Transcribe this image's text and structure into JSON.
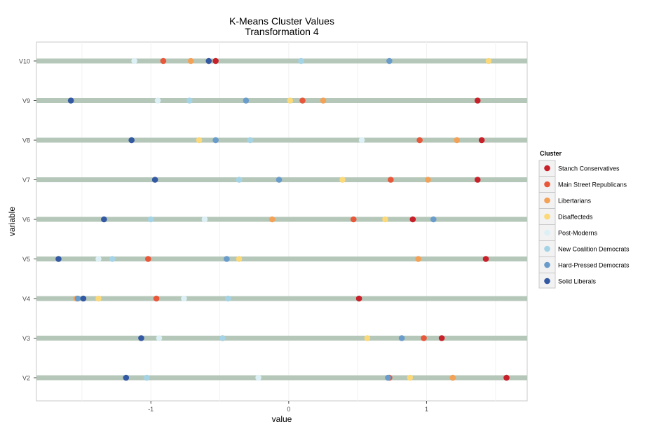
{
  "chart_data": {
    "type": "scatter",
    "title": "K-Means Cluster Values",
    "subtitle": "Transformation 4",
    "xlabel": "value",
    "ylabel": "variable",
    "xlim": [
      -1.83,
      1.73
    ],
    "x_ticks": [
      -1,
      0,
      1
    ],
    "x_tick_labels": [
      "-1",
      "0",
      "1"
    ],
    "categories": [
      "V2",
      "V3",
      "V4",
      "V5",
      "V6",
      "V7",
      "V8",
      "V9",
      "V10"
    ],
    "grid": true,
    "legend": {
      "title": "Cluster",
      "placement": "right"
    },
    "colors": {
      "Stanch Conservatives": "#c8202a",
      "Main Street Republicans": "#e8573a",
      "Libertarians": "#f3a157",
      "Disaffecteds": "#fbd878",
      "Post-Moderns": "#dcf0f6",
      "New Coalition Democrats": "#a5d3e6",
      "Hard-Pressed Democrats": "#6a9ccb",
      "Solid Liberals": "#3459a3",
      "band": "#b5c7b9"
    },
    "series": [
      {
        "name": "Stanch Conservatives",
        "values": [
          1.58,
          1.11,
          0.51,
          1.43,
          0.9,
          1.37,
          1.4,
          1.37,
          -0.53
        ]
      },
      {
        "name": "Main Street Republicans",
        "values": [
          0.73,
          0.98,
          -0.96,
          -1.02,
          0.47,
          0.74,
          0.95,
          0.1,
          -0.91
        ]
      },
      {
        "name": "Libertarians",
        "values": [
          1.19,
          -0.48,
          -1.54,
          0.94,
          -0.12,
          1.01,
          1.22,
          0.25,
          -0.71
        ]
      },
      {
        "name": "Disaffecteds",
        "values": [
          0.88,
          0.57,
          -1.38,
          -0.36,
          0.7,
          0.39,
          -0.65,
          0.01,
          1.45
        ]
      },
      {
        "name": "Post-Moderns",
        "values": [
          -0.22,
          -0.94,
          -0.76,
          -1.38,
          -0.61,
          -0.36,
          0.53,
          -0.95,
          -1.12
        ]
      },
      {
        "name": "New Coalition Democrats",
        "values": [
          -1.03,
          -0.48,
          -0.44,
          -1.28,
          -1.0,
          -0.36,
          -0.28,
          -0.72,
          0.09
        ]
      },
      {
        "name": "Hard-Pressed Democrats",
        "values": [
          0.72,
          0.82,
          -1.53,
          -0.45,
          1.05,
          -0.07,
          -0.53,
          -0.31,
          0.73
        ]
      },
      {
        "name": "Solid Liberals",
        "values": [
          -1.18,
          -1.07,
          -1.49,
          -1.67,
          -1.34,
          -0.97,
          -1.14,
          -1.58,
          -0.58
        ]
      }
    ]
  }
}
